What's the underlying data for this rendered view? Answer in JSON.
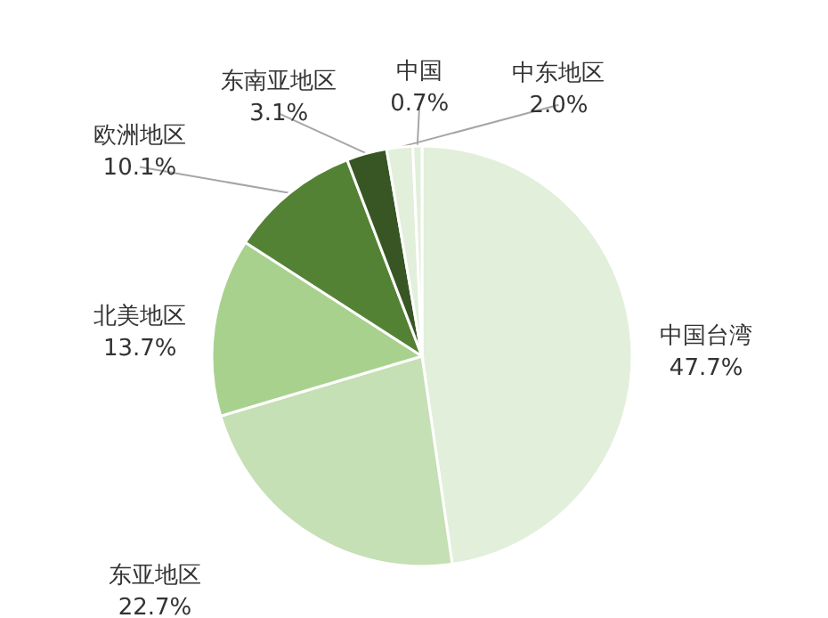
{
  "chart_data": {
    "type": "pie",
    "categories": [
      "中国台湾",
      "东亚地区",
      "北美地区",
      "欧洲地区",
      "东南亚地区",
      "中东地区",
      "中国"
    ],
    "values": [
      47.7,
      22.7,
      13.7,
      10.1,
      3.1,
      2.0,
      0.7
    ],
    "colors": [
      "#e2efda",
      "#c5e0b4",
      "#a9d18e",
      "#548235",
      "#375623",
      "#e2efda",
      "#e2efda"
    ],
    "value_labels": [
      "47.7%",
      "22.7%",
      "13.7%",
      "10.1%",
      "3.1%",
      "2.0%",
      "0.7%"
    ]
  }
}
